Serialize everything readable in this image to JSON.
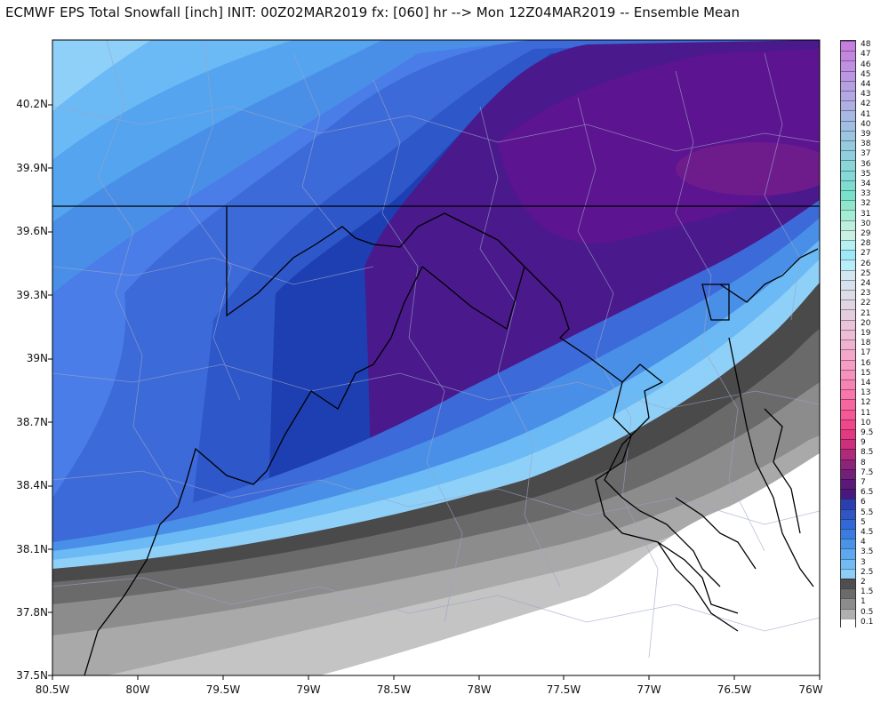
{
  "header": {
    "title": "ECMWF EPS Total Snowfall [inch] INIT: 00Z02MAR2019 fx: [060] hr --> Mon 12Z04MAR2019 -- Ensemble Mean"
  },
  "axes": {
    "lat_labels": [
      "40.2N",
      "39.9N",
      "39.6N",
      "39.3N",
      "39N",
      "38.7N",
      "38.4N",
      "38.1N",
      "37.8N",
      "37.5N"
    ],
    "lon_labels": [
      "80.5W",
      "80W",
      "79.5W",
      "79W",
      "78.5W",
      "78W",
      "77.5W",
      "77W",
      "76.5W",
      "76W"
    ]
  },
  "colorbar": {
    "levels": [
      "48",
      "47",
      "46",
      "45",
      "44",
      "43",
      "42",
      "41",
      "40",
      "39",
      "38",
      "37",
      "36",
      "35",
      "34",
      "33",
      "32",
      "31",
      "30",
      "29",
      "28",
      "27",
      "26",
      "25",
      "24",
      "23",
      "22",
      "21",
      "20",
      "19",
      "18",
      "17",
      "16",
      "15",
      "14",
      "13",
      "12",
      "11",
      "10",
      "9.5",
      "9",
      "8.5",
      "8",
      "7.5",
      "7",
      "6.5",
      "6",
      "5.5",
      "5",
      "4.5",
      "4",
      "3.5",
      "3",
      "2.5",
      "2",
      "1.5",
      "1",
      "0.5",
      "0.1"
    ],
    "colors": [
      "#c77fdf",
      "#c387e0",
      "#bf8fe1",
      "#bb97e2",
      "#b79fe3",
      "#b3a7e4",
      "#aeb0e4",
      "#a8b8e4",
      "#a2bfe3",
      "#9cc5e1",
      "#96cadf",
      "#90cfdd",
      "#8ad4da",
      "#84d8d6",
      "#7edcd1",
      "#78e0cb",
      "#8ee6cf",
      "#a5ecd6",
      "#bcefdc",
      "#c9f0e3",
      "#b7f0f0",
      "#9de9f5",
      "#b7eef9",
      "#d1e8f4",
      "#d7e2ee",
      "#dddce8",
      "#e1d4e3",
      "#e5ccdf",
      "#e9c4db",
      "#edbcd7",
      "#f0b2d1",
      "#f3a8cb",
      "#f59dc4",
      "#f690bc",
      "#f783b4",
      "#f776ab",
      "#f667a0",
      "#f45896",
      "#f0468a",
      "#e23a82",
      "#cf2e7a",
      "#b12a7a",
      "#8e247a",
      "#74207a",
      "#5c1a78",
      "#4b1880",
      "#2b3fb0",
      "#2f56c4",
      "#3369d6",
      "#3a7ce0",
      "#4b93e8",
      "#5ea8ef",
      "#72bbf4",
      "#8dcdf7",
      "#4f4f4f",
      "#6b6b6b",
      "#8c8c8c",
      "#b0b0b0",
      "#ffffff"
    ]
  },
  "map": {
    "region": "Virginia, Maryland, West Virginia, Pennsylvania",
    "palette": {
      "snow_0": "#ffffff",
      "snow_0_1": "#c4c4c4",
      "snow_0_5": "#a9a9a9",
      "snow_1": "#8c8c8c",
      "snow_1_5": "#6a6a6a",
      "snow_2": "#4a4a4a",
      "snow_2_5": "#8fd0f8",
      "snow_3": "#6bbaf5",
      "snow_3_5": "#55a4ef",
      "snow_4": "#4a8fe7",
      "snow_4_5": "#4a7de8",
      "snow_5": "#3d6ad9",
      "snow_5_5": "#2e57c9",
      "snow_6": "#1d3fb2",
      "snow_6_5": "#4a198c",
      "snow_7": "#5d1490",
      "snow_7_5": "#6e1c8c"
    }
  }
}
